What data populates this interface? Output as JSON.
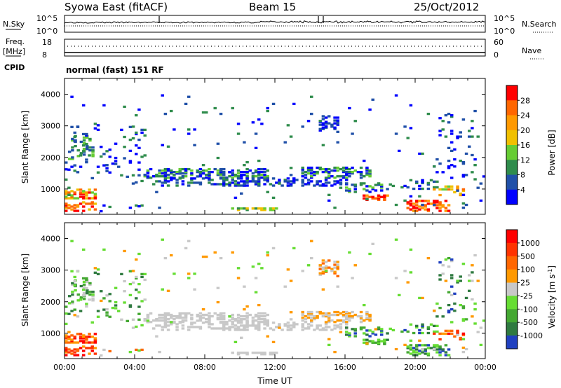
{
  "header": {
    "station": "Syowa East (fitACF)",
    "beam": "Beam 15",
    "date": "25/Oct/2012"
  },
  "top_labels": {
    "nsky": "N.Sky",
    "nsearch": "N.Search",
    "freq": "Freq.",
    "freq_unit": "[MHz]",
    "nave": "Nave",
    "cpid": "CPID",
    "cpid_text": "normal (fast) 151 RF",
    "sky_ticks": [
      "10^5",
      "10^0"
    ],
    "search_ticks": [
      "10^5",
      "10^0"
    ],
    "freq_ticks": [
      "18",
      "8"
    ],
    "nave_ticks": [
      "60",
      "0"
    ]
  },
  "chart_data": [
    {
      "type": "heatmap",
      "panel": "power",
      "ylabel": "Slant Range [km]",
      "xlabel": "",
      "yticks": [
        "1000",
        "2000",
        "3000",
        "4000"
      ],
      "ylim": [
        200,
        4500
      ],
      "colorbar": {
        "label": "Power [dB]",
        "ticks": [
          "4",
          "8",
          "12",
          "16",
          "20",
          "24",
          "28"
        ],
        "colors": [
          "#0000ff",
          "#2050a8",
          "#2f8c4c",
          "#66cc33",
          "#f0c000",
          "#ff9900",
          "#ff6600",
          "#ff0000"
        ]
      }
    },
    {
      "type": "heatmap",
      "panel": "velocity",
      "ylabel": "Slant Range [km]",
      "xlabel": "Time UT",
      "xticks": [
        "00:00",
        "04:00",
        "08:00",
        "12:00",
        "16:00",
        "20:00",
        "00:00"
      ],
      "yticks": [
        "1000",
        "2000",
        "3000",
        "4000"
      ],
      "ylim": [
        200,
        4500
      ],
      "colorbar": {
        "label": "Velocity [m s",
        "label_sup": "-1",
        "label_end": "]",
        "ticks": [
          "1000",
          "500",
          "100",
          "25",
          "-25",
          "-100",
          "-500",
          "-1000"
        ],
        "colors": [
          "#2040c0",
          "#2f7a40",
          "#44a832",
          "#66dd33",
          "#c8c8c8",
          "#ff9900",
          "#ff6600",
          "#ff3300",
          "#ff0000"
        ]
      }
    }
  ]
}
